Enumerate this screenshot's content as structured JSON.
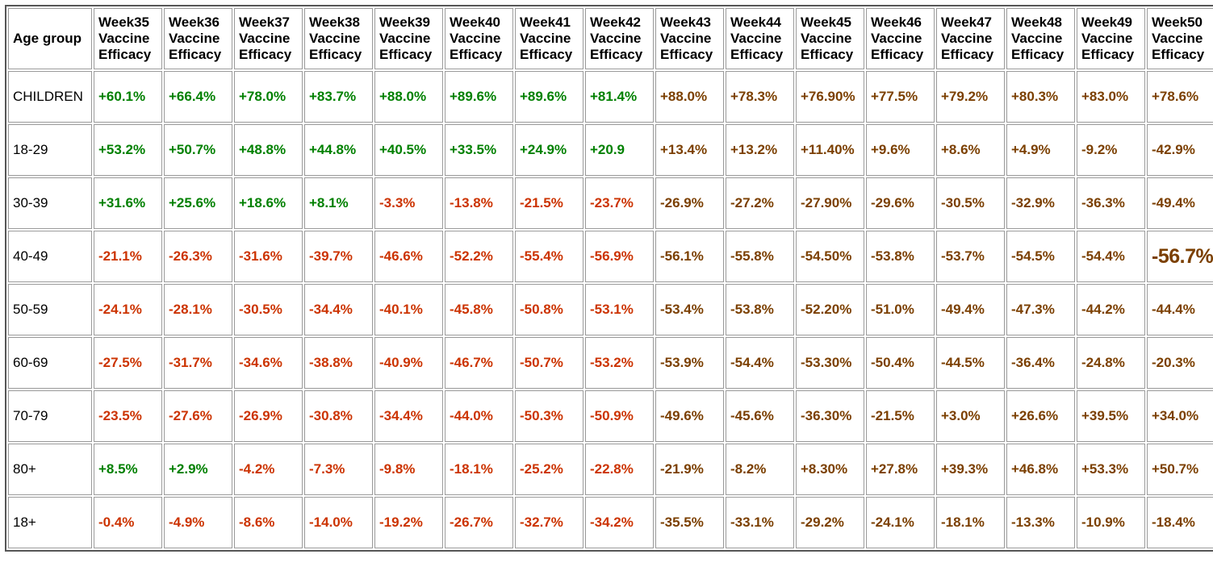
{
  "colors": {
    "green": "#008000",
    "red": "#cc3300",
    "brown": "#7b3f00",
    "header_text": "#000000"
  },
  "chart_data": {
    "type": "table",
    "row_header": "Age group",
    "column_subtitle_lines": [
      "Vaccine",
      "Efficacy"
    ],
    "columns": [
      "Week35",
      "Week36",
      "Week37",
      "Week38",
      "Week39",
      "Week40",
      "Week41",
      "Week42",
      "Week43",
      "Week44",
      "Week45",
      "Week46",
      "Week47",
      "Week48",
      "Week49",
      "Week50"
    ],
    "rows": [
      {
        "label": "CHILDREN",
        "values": [
          "+60.1%",
          "+66.4%",
          "+78.0%",
          "+83.7%",
          "+88.0%",
          "+89.6%",
          "+89.6%",
          "+81.4%",
          "+88.0%",
          "+78.3%",
          "+76.90%",
          "+77.5%",
          "+79.2%",
          "+80.3%",
          "+83.0%",
          "+78.6%"
        ],
        "colors": [
          "green",
          "green",
          "green",
          "green",
          "green",
          "green",
          "green",
          "green",
          "brown",
          "brown",
          "brown",
          "brown",
          "brown",
          "brown",
          "brown",
          "brown"
        ],
        "large_index": -1
      },
      {
        "label": "18-29",
        "values": [
          "+53.2%",
          "+50.7%",
          "+48.8%",
          "+44.8%",
          "+40.5%",
          "+33.5%",
          "+24.9%",
          "+20.9",
          "+13.4%",
          "+13.2%",
          "+11.40%",
          "+9.6%",
          "+8.6%",
          "+4.9%",
          "-9.2%",
          "-42.9%"
        ],
        "colors": [
          "green",
          "green",
          "green",
          "green",
          "green",
          "green",
          "green",
          "green",
          "brown",
          "brown",
          "brown",
          "brown",
          "brown",
          "brown",
          "brown",
          "brown"
        ],
        "large_index": -1
      },
      {
        "label": "30-39",
        "values": [
          "+31.6%",
          "+25.6%",
          "+18.6%",
          "+8.1%",
          "-3.3%",
          "-13.8%",
          "-21.5%",
          "-23.7%",
          "-26.9%",
          "-27.2%",
          "-27.90%",
          "-29.6%",
          "-30.5%",
          "-32.9%",
          "-36.3%",
          "-49.4%"
        ],
        "colors": [
          "green",
          "green",
          "green",
          "green",
          "red",
          "red",
          "red",
          "red",
          "brown",
          "brown",
          "brown",
          "brown",
          "brown",
          "brown",
          "brown",
          "brown"
        ],
        "large_index": -1
      },
      {
        "label": "40-49",
        "values": [
          "-21.1%",
          "-26.3%",
          "-31.6%",
          "-39.7%",
          "-46.6%",
          "-52.2%",
          "-55.4%",
          "-56.9%",
          "-56.1%",
          "-55.8%",
          "-54.50%",
          "-53.8%",
          "-53.7%",
          "-54.5%",
          "-54.4%",
          "-56.7%"
        ],
        "colors": [
          "red",
          "red",
          "red",
          "red",
          "red",
          "red",
          "red",
          "red",
          "brown",
          "brown",
          "brown",
          "brown",
          "brown",
          "brown",
          "brown",
          "brown"
        ],
        "large_index": 15
      },
      {
        "label": "50-59",
        "values": [
          "-24.1%",
          "-28.1%",
          "-30.5%",
          "-34.4%",
          "-40.1%",
          "-45.8%",
          "-50.8%",
          "-53.1%",
          "-53.4%",
          "-53.8%",
          "-52.20%",
          "-51.0%",
          "-49.4%",
          "-47.3%",
          "-44.2%",
          "-44.4%"
        ],
        "colors": [
          "red",
          "red",
          "red",
          "red",
          "red",
          "red",
          "red",
          "red",
          "brown",
          "brown",
          "brown",
          "brown",
          "brown",
          "brown",
          "brown",
          "brown"
        ],
        "large_index": -1
      },
      {
        "label": "60-69",
        "values": [
          "-27.5%",
          "-31.7%",
          "-34.6%",
          "-38.8%",
          "-40.9%",
          "-46.7%",
          "-50.7%",
          "-53.2%",
          "-53.9%",
          "-54.4%",
          "-53.30%",
          "-50.4%",
          "-44.5%",
          "-36.4%",
          "-24.8%",
          "-20.3%"
        ],
        "colors": [
          "red",
          "red",
          "red",
          "red",
          "red",
          "red",
          "red",
          "red",
          "brown",
          "brown",
          "brown",
          "brown",
          "brown",
          "brown",
          "brown",
          "brown"
        ],
        "large_index": -1
      },
      {
        "label": "70-79",
        "values": [
          "-23.5%",
          "-27.6%",
          "-26.9%",
          "-30.8%",
          "-34.4%",
          "-44.0%",
          "-50.3%",
          "-50.9%",
          "-49.6%",
          "-45.6%",
          "-36.30%",
          "-21.5%",
          "+3.0%",
          "+26.6%",
          "+39.5%",
          "+34.0%"
        ],
        "colors": [
          "red",
          "red",
          "red",
          "red",
          "red",
          "red",
          "red",
          "red",
          "brown",
          "brown",
          "brown",
          "brown",
          "brown",
          "brown",
          "brown",
          "brown"
        ],
        "large_index": -1
      },
      {
        "label": "80+",
        "values": [
          "+8.5%",
          "+2.9%",
          "-4.2%",
          "-7.3%",
          "-9.8%",
          "-18.1%",
          "-25.2%",
          "-22.8%",
          "-21.9%",
          "-8.2%",
          "+8.30%",
          "+27.8%",
          "+39.3%",
          "+46.8%",
          "+53.3%",
          "+50.7%"
        ],
        "colors": [
          "green",
          "green",
          "red",
          "red",
          "red",
          "red",
          "red",
          "red",
          "brown",
          "brown",
          "brown",
          "brown",
          "brown",
          "brown",
          "brown",
          "brown"
        ],
        "large_index": -1
      },
      {
        "label": "18+",
        "values": [
          "-0.4%",
          "-4.9%",
          "-8.6%",
          "-14.0%",
          "-19.2%",
          "-26.7%",
          "-32.7%",
          "-34.2%",
          "-35.5%",
          "-33.1%",
          "-29.2%",
          "-24.1%",
          "-18.1%",
          "-13.3%",
          "-10.9%",
          "-18.4%"
        ],
        "colors": [
          "red",
          "red",
          "red",
          "red",
          "red",
          "red",
          "red",
          "red",
          "brown",
          "brown",
          "brown",
          "brown",
          "brown",
          "brown",
          "brown",
          "brown"
        ],
        "large_index": -1
      }
    ]
  }
}
